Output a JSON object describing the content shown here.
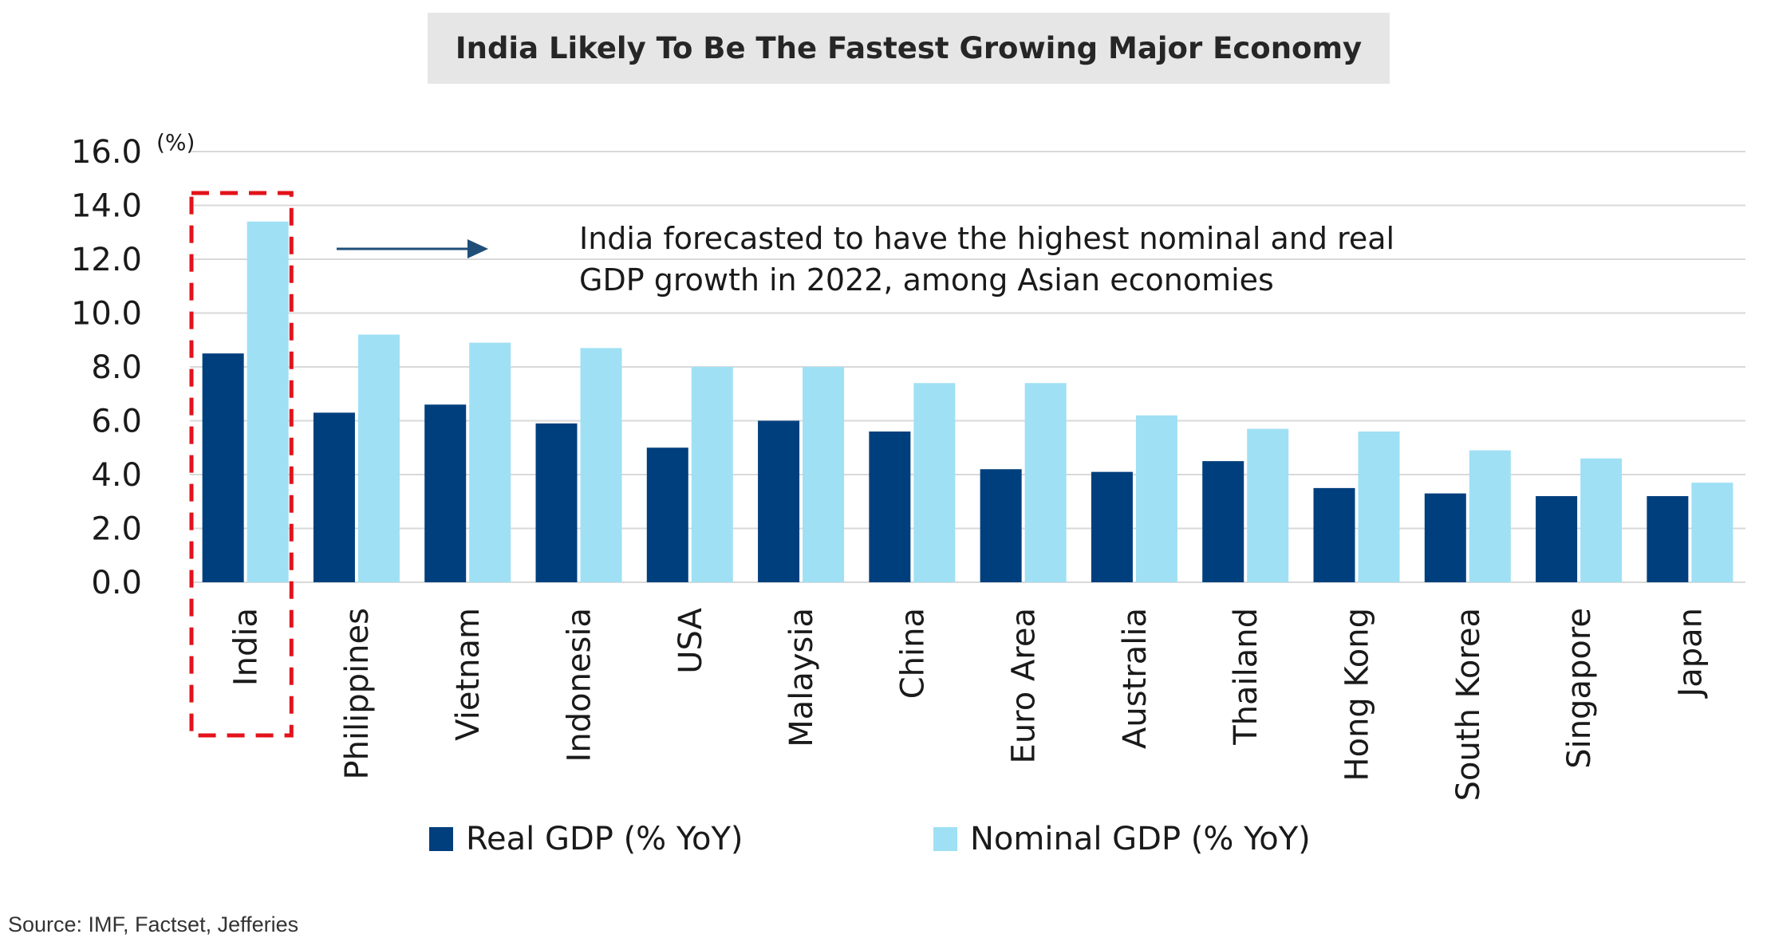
{
  "title": "India Likely To Be The Fastest Growing Major Economy",
  "source": "Source: IMF, Factset, Jefferies",
  "annotation": {
    "line1": "India forecasted to have the highest nominal and real",
    "line2": "GDP growth in 2022, among Asian economies"
  },
  "colors": {
    "real": "#003f7d",
    "nominal": "#9fe0f5",
    "highlight": "#e3121b",
    "arrow": "#1f4e79",
    "grid": "#d9d9d9"
  },
  "chart_data": {
    "type": "bar",
    "unit_label": "(%)",
    "ylim": [
      0,
      16
    ],
    "yticks": [
      "0.0",
      "2.0",
      "4.0",
      "6.0",
      "8.0",
      "10.0",
      "12.0",
      "14.0",
      "16.0"
    ],
    "grid": true,
    "legend_position": "bottom",
    "highlighted_category": "India",
    "categories": [
      "India",
      "Philippines",
      "Vietnam",
      "Indonesia",
      "USA",
      "Malaysia",
      "China",
      "Euro Area",
      "Australia",
      "Thailand",
      "Hong Kong",
      "South Korea",
      "Singapore",
      "Japan"
    ],
    "series": [
      {
        "name": "Real GDP (% YoY)",
        "values": [
          8.5,
          6.3,
          6.6,
          5.9,
          5.0,
          6.0,
          5.6,
          4.2,
          4.1,
          4.5,
          3.5,
          3.3,
          3.2,
          3.2
        ]
      },
      {
        "name": "Nominal GDP (% YoY)",
        "values": [
          13.4,
          9.2,
          8.9,
          8.7,
          8.0,
          8.0,
          7.4,
          7.4,
          6.2,
          5.7,
          5.6,
          4.9,
          4.6,
          3.7
        ]
      }
    ]
  }
}
